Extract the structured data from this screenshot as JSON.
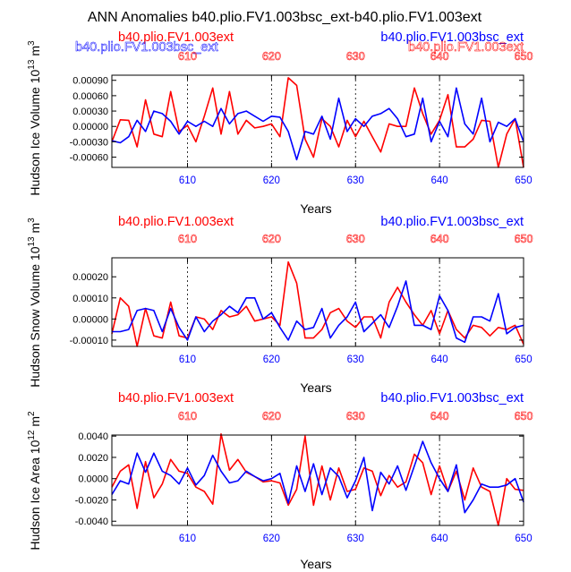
{
  "title": "ANN Anomalies b40.plio.FV1.003bsc_ext-b40.plio.FV1.003ext",
  "colors": {
    "red": "#ff0000",
    "blue": "#0000ff",
    "axis": "#000000",
    "grid": "#000000"
  },
  "chart_data": [
    {
      "type": "line",
      "ylabel": "Hudson Ice Volume 10",
      "ylabel_exp": "13",
      "ylabel_unit": "m",
      "ylabel_unit_exp": "3",
      "xlabel": "Years",
      "top_left_label": "b40.plio.FV1.003ext",
      "top_right_label": "b40.plio.FV1.003bsc_ext",
      "ghost_left_label": "b40.plio.FV1.003bsc_ext",
      "ghost_right_label": "b40.plio.FV1.003ext",
      "xlim": [
        601,
        650
      ],
      "ylim": [
        -0.0008,
        0.001
      ],
      "xticks": [
        610,
        620,
        630,
        640,
        650
      ],
      "yticks": [
        -0.0006,
        -0.0003,
        0.0,
        0.0003,
        0.0006,
        0.0009
      ],
      "ytick_labels": [
        "-0.00060",
        "-0.00030",
        "0.00000",
        "0.00030",
        "0.00060",
        "0.00090"
      ],
      "grid_x": [
        610,
        620,
        630,
        640
      ],
      "series": [
        {
          "name": "b40.plio.FV1.003ext",
          "color": "red",
          "values": [
            -0.0003,
            0.00013,
            0.00012,
            -0.0004,
            0.00052,
            -0.00015,
            -0.0002,
            0.00068,
            -0.0001,
            2e-05,
            -0.0003,
            0.0002,
            0.00075,
            -0.00015,
            0.00068,
            -0.00015,
            0.00012,
            -3e-05,
            0.0,
            5e-05,
            -0.0002,
            0.00095,
            0.0008,
            -0.00025,
            -0.0006,
            0.00015,
            0.0,
            -0.0004,
            0.00012,
            -0.0002,
            0.0001,
            -0.0002,
            -0.0005,
            5e-05,
            0.0,
            0.0,
            0.00075,
            0.00025,
            -0.00015,
            0.00012,
            0.00062,
            -0.0004,
            -0.0004,
            -0.00025,
            0.00012,
            0.0001,
            -0.0008,
            -0.00015,
            0.00015,
            -0.0008
          ]
        },
        {
          "name": "b40.plio.FV1.003bsc_ext",
          "color": "blue",
          "values": [
            -0.00028,
            -0.00032,
            -0.0002,
            0.00012,
            -0.0001,
            0.0003,
            0.00025,
            0.0001,
            -0.00015,
            0.0001,
            0.0,
            0.0001,
            0.0,
            0.00035,
            5e-05,
            0.00025,
            0.0003,
            0.0002,
            0.0001,
            0.0002,
            0.00018,
            -0.0001,
            -0.00065,
            -0.0001,
            -0.00015,
            0.0002,
            -0.00025,
            0.00055,
            -0.0001,
            0.00015,
            0.0,
            0.0002,
            0.00025,
            0.00035,
            0.00015,
            -0.0002,
            -0.00015,
            0.00055,
            -0.0003,
            0.0001,
            -0.0002,
            0.00075,
            5e-05,
            -0.00015,
            0.00055,
            -0.0003,
            8e-05,
            0.0,
            0.00015,
            -0.0003
          ]
        }
      ]
    },
    {
      "type": "line",
      "ylabel": "Hudson Snow Volume 10",
      "ylabel_exp": "13",
      "ylabel_unit": "m",
      "ylabel_unit_exp": "3",
      "xlabel": "Years",
      "top_left_label": "b40.plio.FV1.003ext",
      "top_right_label": "b40.plio.FV1.003bsc_ext",
      "xlim": [
        601,
        650
      ],
      "ylim": [
        -0.00013,
        0.00029
      ],
      "xticks": [
        610,
        620,
        630,
        640,
        650
      ],
      "yticks": [
        -0.0001,
        0.0,
        0.0001,
        0.0002
      ],
      "ytick_labels": [
        "-0.00010",
        "0.00000",
        "0.00010",
        "0.00020"
      ],
      "grid_x": [
        610,
        620,
        630,
        640
      ],
      "series": [
        {
          "name": "b40.plio.FV1.003ext",
          "color": "red",
          "values": [
            -7e-05,
            0.0001,
            6e-05,
            -0.00013,
            5e-05,
            -8e-05,
            -9e-05,
            8e-05,
            -8e-05,
            -9e-05,
            1e-05,
            0.0,
            -5e-05,
            4e-05,
            1e-05,
            2e-05,
            6e-05,
            -1e-05,
            0.0,
            1e-05,
            -3e-05,
            0.00027,
            0.00017,
            -9e-05,
            -9e-05,
            -5e-05,
            3e-05,
            5e-05,
            -1e-05,
            -4e-05,
            1e-05,
            1e-05,
            -9e-05,
            8e-05,
            0.00015,
            8e-05,
            2e-05,
            -3e-05,
            4e-05,
            -7e-05,
            4e-05,
            -5e-05,
            -9e-05,
            -3e-05,
            -4e-05,
            -8e-05,
            -4e-05,
            -5e-05,
            -3e-05,
            -0.00012
          ]
        },
        {
          "name": "b40.plio.FV1.003bsc_ext",
          "color": "blue",
          "values": [
            -6e-05,
            -6e-05,
            -5e-05,
            4e-05,
            5e-05,
            4e-05,
            -6e-05,
            5e-05,
            -4e-05,
            -0.0001,
            1e-05,
            -6e-05,
            -1e-05,
            2e-05,
            6e-05,
            3e-05,
            0.0001,
            0.0001,
            0.0,
            3e-05,
            -4e-05,
            -0.0001,
            -1e-05,
            -5e-05,
            -4e-05,
            5e-05,
            -9e-05,
            -3e-05,
            1e-05,
            8e-05,
            -6e-05,
            -2e-05,
            2e-05,
            -4e-05,
            6e-05,
            0.00018,
            -3e-05,
            -3e-05,
            -5e-05,
            0.00011,
            4e-05,
            -9e-05,
            -0.00011,
            1e-05,
            1e-05,
            -1e-05,
            0.00012,
            -7e-05,
            -4e-05,
            -3e-05
          ]
        }
      ]
    },
    {
      "type": "line",
      "ylabel": "Hudson Ice Area 10",
      "ylabel_exp": "12",
      "ylabel_unit": "m",
      "ylabel_unit_exp": "2",
      "xlabel": "Years",
      "top_left_label": "b40.plio.FV1.003ext",
      "top_right_label": "b40.plio.FV1.003bsc_ext",
      "xlim": [
        601,
        650
      ],
      "ylim": [
        -0.0044,
        0.0041
      ],
      "xticks": [
        610,
        620,
        630,
        640,
        650
      ],
      "yticks": [
        -0.004,
        -0.002,
        0.0,
        0.002,
        0.004
      ],
      "ytick_labels": [
        "-0.0040",
        "-0.0020",
        "0.0000",
        "0.0020",
        "0.0040"
      ],
      "grid_x": [
        610,
        620,
        630,
        640
      ],
      "series": [
        {
          "name": "b40.plio.FV1.003ext",
          "color": "red",
          "values": [
            -0.0008,
            0.0007,
            0.0013,
            -0.0028,
            0.0016,
            -0.0018,
            -0.0005,
            0.0018,
            0.0007,
            0.0005,
            -0.0008,
            -0.0012,
            -0.0024,
            0.0042,
            0.0008,
            0.0018,
            0.0006,
            0.0002,
            -0.0003,
            -0.0002,
            -0.0004,
            -0.0025,
            -0.001,
            0.004,
            -0.0025,
            0.0012,
            -0.002,
            0.001,
            -0.0012,
            -0.001,
            0.001,
            0.0007,
            -0.0016,
            0.0003,
            -0.0008,
            -0.0003,
            0.0023,
            0.0015,
            -0.0015,
            0.0012,
            -0.0012,
            0.0007,
            -0.002,
            0.001,
            -0.0008,
            -0.0012,
            -0.0044,
            0.0,
            -0.001,
            -0.0011
          ]
        },
        {
          "name": "b40.plio.FV1.003bsc_ext",
          "color": "blue",
          "values": [
            -0.0015,
            -0.0002,
            -0.0005,
            0.0024,
            0.0006,
            0.0024,
            0.0007,
            0.0003,
            -0.0005,
            0.001,
            -0.0006,
            0.0003,
            0.0022,
            0.0007,
            -0.0004,
            -0.0002,
            0.0007,
            0.0002,
            -0.0002,
            0.0,
            0.0005,
            -0.0023,
            0.0012,
            -0.0012,
            0.0014,
            -0.0015,
            0.001,
            0.0002,
            -0.0018,
            -0.0002,
            0.002,
            -0.003,
            0.0006,
            -0.0005,
            0.0012,
            -0.0011,
            0.0012,
            0.0035,
            0.0015,
            0.0,
            -0.0012,
            0.0013,
            -0.0032,
            -0.002,
            -0.0005,
            -0.0008,
            -0.0008,
            -0.0006,
            0.0,
            -0.0022
          ]
        }
      ]
    }
  ]
}
